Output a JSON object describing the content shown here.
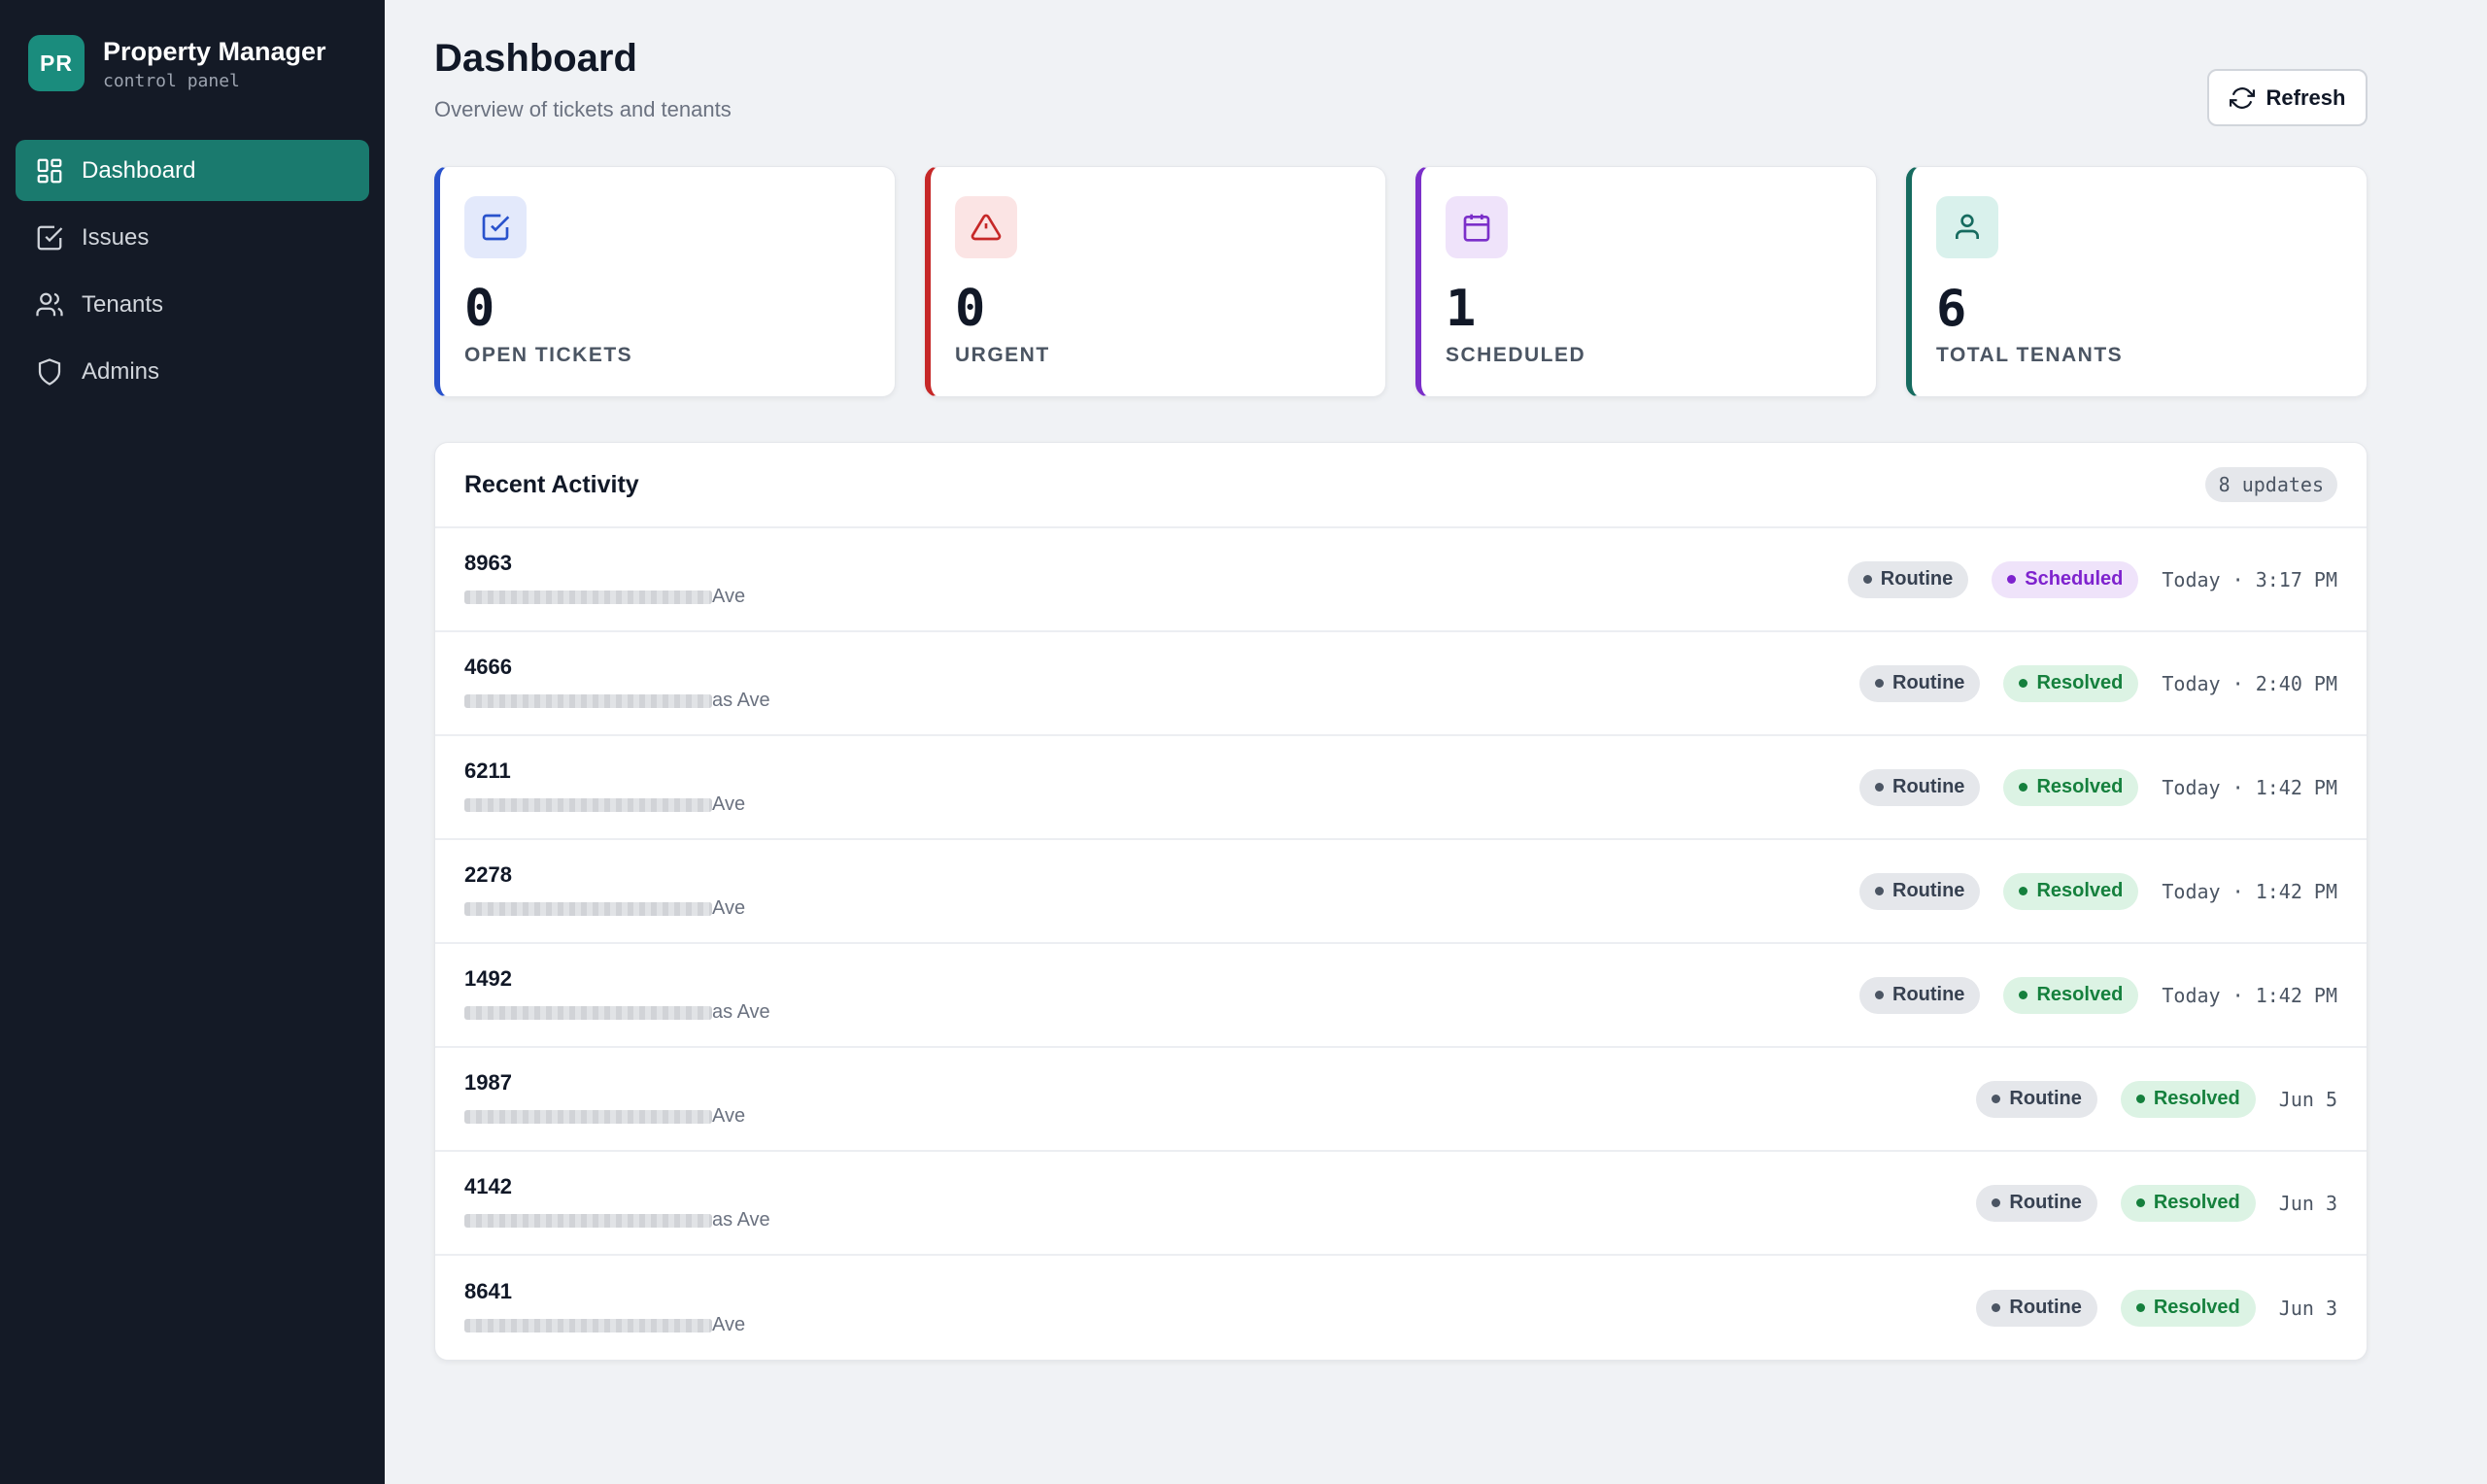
{
  "brand": {
    "logo": "PR",
    "title": "Property Manager",
    "subtitle": "control panel"
  },
  "nav": [
    {
      "label": "Dashboard",
      "icon": "dashboard-icon",
      "active": true
    },
    {
      "label": "Issues",
      "icon": "checkbox-icon",
      "active": false
    },
    {
      "label": "Tenants",
      "icon": "users-icon",
      "active": false
    },
    {
      "label": "Admins",
      "icon": "shield-icon",
      "active": false
    }
  ],
  "header": {
    "title": "Dashboard",
    "subtitle": "Overview of tickets and tenants",
    "refresh_label": "Refresh"
  },
  "stats": [
    {
      "value": "0",
      "label": "OPEN TICKETS",
      "icon": "check-square-icon",
      "accent": "#2952cc",
      "icon_bg": "#e3e9fb"
    },
    {
      "value": "0",
      "label": "URGENT",
      "icon": "alert-triangle-icon",
      "accent": "#c62828",
      "icon_bg": "#fbe4e4"
    },
    {
      "value": "1",
      "label": "SCHEDULED",
      "icon": "calendar-icon",
      "accent": "#7b2fc9",
      "icon_bg": "#efe3fa"
    },
    {
      "value": "6",
      "label": "TOTAL TENANTS",
      "icon": "user-icon",
      "accent": "#166b5f",
      "icon_bg": "#d9f1ec"
    }
  ],
  "activity": {
    "title": "Recent Activity",
    "count": "8 updates",
    "rows": [
      {
        "id": "8963",
        "address_suffix": "Ave",
        "priority": "Routine",
        "status": "Scheduled",
        "time": "Today · 3:17 PM"
      },
      {
        "id": "4666",
        "address_suffix": "as Ave",
        "priority": "Routine",
        "status": "Resolved",
        "time": "Today · 2:40 PM"
      },
      {
        "id": "6211",
        "address_suffix": "Ave",
        "priority": "Routine",
        "status": "Resolved",
        "time": "Today · 1:42 PM"
      },
      {
        "id": "2278",
        "address_suffix": "Ave",
        "priority": "Routine",
        "status": "Resolved",
        "time": "Today · 1:42 PM"
      },
      {
        "id": "1492",
        "address_suffix": "as Ave",
        "priority": "Routine",
        "status": "Resolved",
        "time": "Today · 1:42 PM"
      },
      {
        "id": "1987",
        "address_suffix": "Ave",
        "priority": "Routine",
        "status": "Resolved",
        "time": "Jun 5"
      },
      {
        "id": "4142",
        "address_suffix": "as Ave",
        "priority": "Routine",
        "status": "Resolved",
        "time": "Jun 3"
      },
      {
        "id": "8641",
        "address_suffix": "Ave",
        "priority": "Routine",
        "status": "Resolved",
        "time": "Jun 3"
      }
    ]
  },
  "colors": {
    "sidebar_bg": "#141a26",
    "active_nav": "#1a7a6e",
    "page_bg": "#f0f2f5"
  }
}
